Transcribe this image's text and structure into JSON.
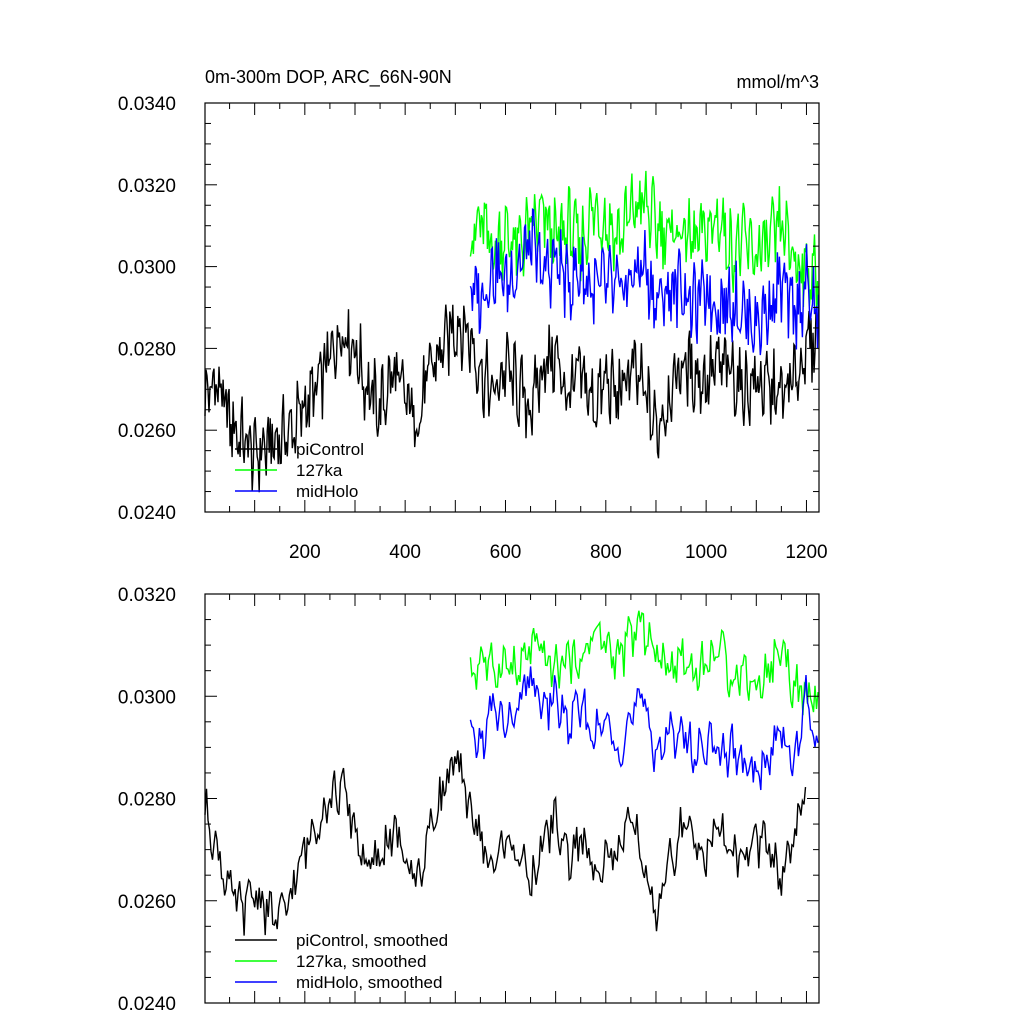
{
  "chart_data": [
    {
      "type": "line",
      "title": "0m-300m DOP, ARC_66N-90N",
      "units": "mmol/m^3",
      "xlim": [
        1,
        1225
      ],
      "ylim": [
        0.024,
        0.034
      ],
      "x_ticks": [
        200,
        400,
        600,
        800,
        1000,
        1200
      ],
      "y_ticks": [
        "0.0240",
        "0.0260",
        "0.0280",
        "0.0300",
        "0.0320",
        "0.0340"
      ],
      "legend_placement": "bottom-left",
      "series": [
        {
          "name": "piControl",
          "color": "#000000",
          "x": [
            1,
            25,
            50,
            75,
            100,
            125,
            150,
            175,
            200,
            225,
            250,
            275,
            300,
            325,
            350,
            375,
            400,
            425,
            450,
            475,
            500,
            525,
            550,
            575,
            600,
            625,
            650,
            675,
            700,
            725,
            750,
            775,
            800,
            825,
            850,
            875,
            900,
            925,
            950,
            975,
            1000,
            1025,
            1050,
            1075,
            1100,
            1125,
            1150,
            1175,
            1200,
            1220
          ],
          "values": [
            0.0268,
            0.0272,
            0.0262,
            0.0258,
            0.0254,
            0.0256,
            0.0258,
            0.026,
            0.0266,
            0.027,
            0.0278,
            0.0285,
            0.028,
            0.027,
            0.0265,
            0.0274,
            0.0268,
            0.0262,
            0.0275,
            0.028,
            0.0286,
            0.0284,
            0.0275,
            0.0268,
            0.0276,
            0.027,
            0.0265,
            0.0276,
            0.0278,
            0.0268,
            0.0274,
            0.0266,
            0.0272,
            0.0268,
            0.0275,
            0.027,
            0.026,
            0.0268,
            0.0276,
            0.0274,
            0.0272,
            0.0276,
            0.0274,
            0.027,
            0.0272,
            0.027,
            0.0268,
            0.0272,
            0.028,
            0.0282
          ]
        },
        {
          "name": "127ka",
          "color": "#00ff00",
          "x": [
            530,
            550,
            575,
            600,
            625,
            650,
            675,
            700,
            725,
            750,
            775,
            800,
            825,
            850,
            875,
            900,
            925,
            950,
            975,
            1000,
            1025,
            1050,
            1075,
            1100,
            1125,
            1150,
            1175,
            1200,
            1225
          ],
          "values": [
            0.0306,
            0.0311,
            0.0304,
            0.0308,
            0.0305,
            0.0309,
            0.0312,
            0.0306,
            0.031,
            0.0305,
            0.0314,
            0.0311,
            0.0307,
            0.0313,
            0.0316,
            0.031,
            0.0308,
            0.0309,
            0.0306,
            0.0308,
            0.0312,
            0.0304,
            0.0306,
            0.0303,
            0.0305,
            0.031,
            0.0302,
            0.03,
            0.0296
          ]
        },
        {
          "name": "midHolo",
          "color": "#0000ff",
          "x": [
            530,
            550,
            575,
            600,
            625,
            650,
            675,
            700,
            725,
            750,
            775,
            800,
            825,
            850,
            875,
            900,
            925,
            950,
            975,
            1000,
            1025,
            1050,
            1075,
            1100,
            1125,
            1150,
            1175,
            1200,
            1225
          ],
          "values": [
            0.0295,
            0.0292,
            0.03,
            0.0296,
            0.03,
            0.0306,
            0.0298,
            0.0302,
            0.0296,
            0.0299,
            0.0294,
            0.0296,
            0.0293,
            0.0297,
            0.0301,
            0.0291,
            0.0294,
            0.0296,
            0.029,
            0.0294,
            0.029,
            0.0292,
            0.0289,
            0.0286,
            0.029,
            0.0296,
            0.0288,
            0.0295,
            0.0287
          ]
        }
      ]
    },
    {
      "type": "line",
      "xlim": [
        1,
        1225
      ],
      "ylim": [
        0.024,
        0.032
      ],
      "x_ticks": [
        200,
        400,
        600,
        800,
        1000,
        1200
      ],
      "y_ticks": [
        "0.0240",
        "0.0260",
        "0.0280",
        "0.0300",
        "0.0320"
      ],
      "legend_placement": "bottom-left",
      "series": [
        {
          "name": "piControl, smoothed",
          "color": "#000000",
          "x": [
            1,
            25,
            50,
            75,
            100,
            125,
            150,
            175,
            200,
            225,
            250,
            275,
            300,
            325,
            350,
            375,
            400,
            425,
            450,
            475,
            500,
            525,
            550,
            575,
            600,
            625,
            650,
            675,
            700,
            725,
            750,
            775,
            800,
            825,
            850,
            875,
            900,
            925,
            950,
            975,
            1000,
            1025,
            1050,
            1075,
            1100,
            1125,
            1150,
            1175,
            1200
          ],
          "values": [
            0.0278,
            0.027,
            0.0262,
            0.0258,
            0.0262,
            0.0258,
            0.0256,
            0.0262,
            0.027,
            0.0276,
            0.028,
            0.0282,
            0.0274,
            0.0266,
            0.0268,
            0.0274,
            0.0268,
            0.0264,
            0.0274,
            0.0282,
            0.0287,
            0.028,
            0.0272,
            0.0266,
            0.0272,
            0.027,
            0.0262,
            0.0272,
            0.0276,
            0.0268,
            0.0272,
            0.0266,
            0.027,
            0.0268,
            0.0276,
            0.0268,
            0.0256,
            0.0266,
            0.0274,
            0.0272,
            0.027,
            0.0274,
            0.027,
            0.0268,
            0.0272,
            0.027,
            0.0264,
            0.0272,
            0.0281
          ]
        },
        {
          "name": "127ka, smoothed",
          "color": "#00ff00",
          "x": [
            530,
            550,
            575,
            600,
            625,
            650,
            675,
            700,
            725,
            750,
            775,
            800,
            825,
            850,
            875,
            900,
            925,
            950,
            975,
            1000,
            1025,
            1050,
            1075,
            1100,
            1125,
            1150,
            1175,
            1200,
            1225
          ],
          "values": [
            0.0303,
            0.0308,
            0.0305,
            0.0307,
            0.0304,
            0.031,
            0.0308,
            0.0305,
            0.0308,
            0.0306,
            0.0313,
            0.031,
            0.0307,
            0.0312,
            0.0314,
            0.0308,
            0.0306,
            0.0308,
            0.0305,
            0.0306,
            0.031,
            0.0304,
            0.0305,
            0.0302,
            0.0305,
            0.031,
            0.0302,
            0.0299,
            0.03
          ]
        },
        {
          "name": "midHolo, smoothed",
          "color": "#0000ff",
          "x": [
            530,
            550,
            575,
            600,
            625,
            650,
            675,
            700,
            725,
            750,
            775,
            800,
            825,
            850,
            875,
            900,
            925,
            950,
            975,
            1000,
            1025,
            1050,
            1075,
            1100,
            1125,
            1150,
            1175,
            1200,
            1225
          ],
          "values": [
            0.0292,
            0.029,
            0.0298,
            0.0294,
            0.0297,
            0.0304,
            0.0297,
            0.03,
            0.0294,
            0.0298,
            0.0292,
            0.0295,
            0.029,
            0.0296,
            0.0299,
            0.0289,
            0.0292,
            0.0294,
            0.0288,
            0.0292,
            0.0288,
            0.029,
            0.0286,
            0.0284,
            0.0288,
            0.0294,
            0.0286,
            0.03,
            0.0288
          ]
        }
      ]
    }
  ]
}
